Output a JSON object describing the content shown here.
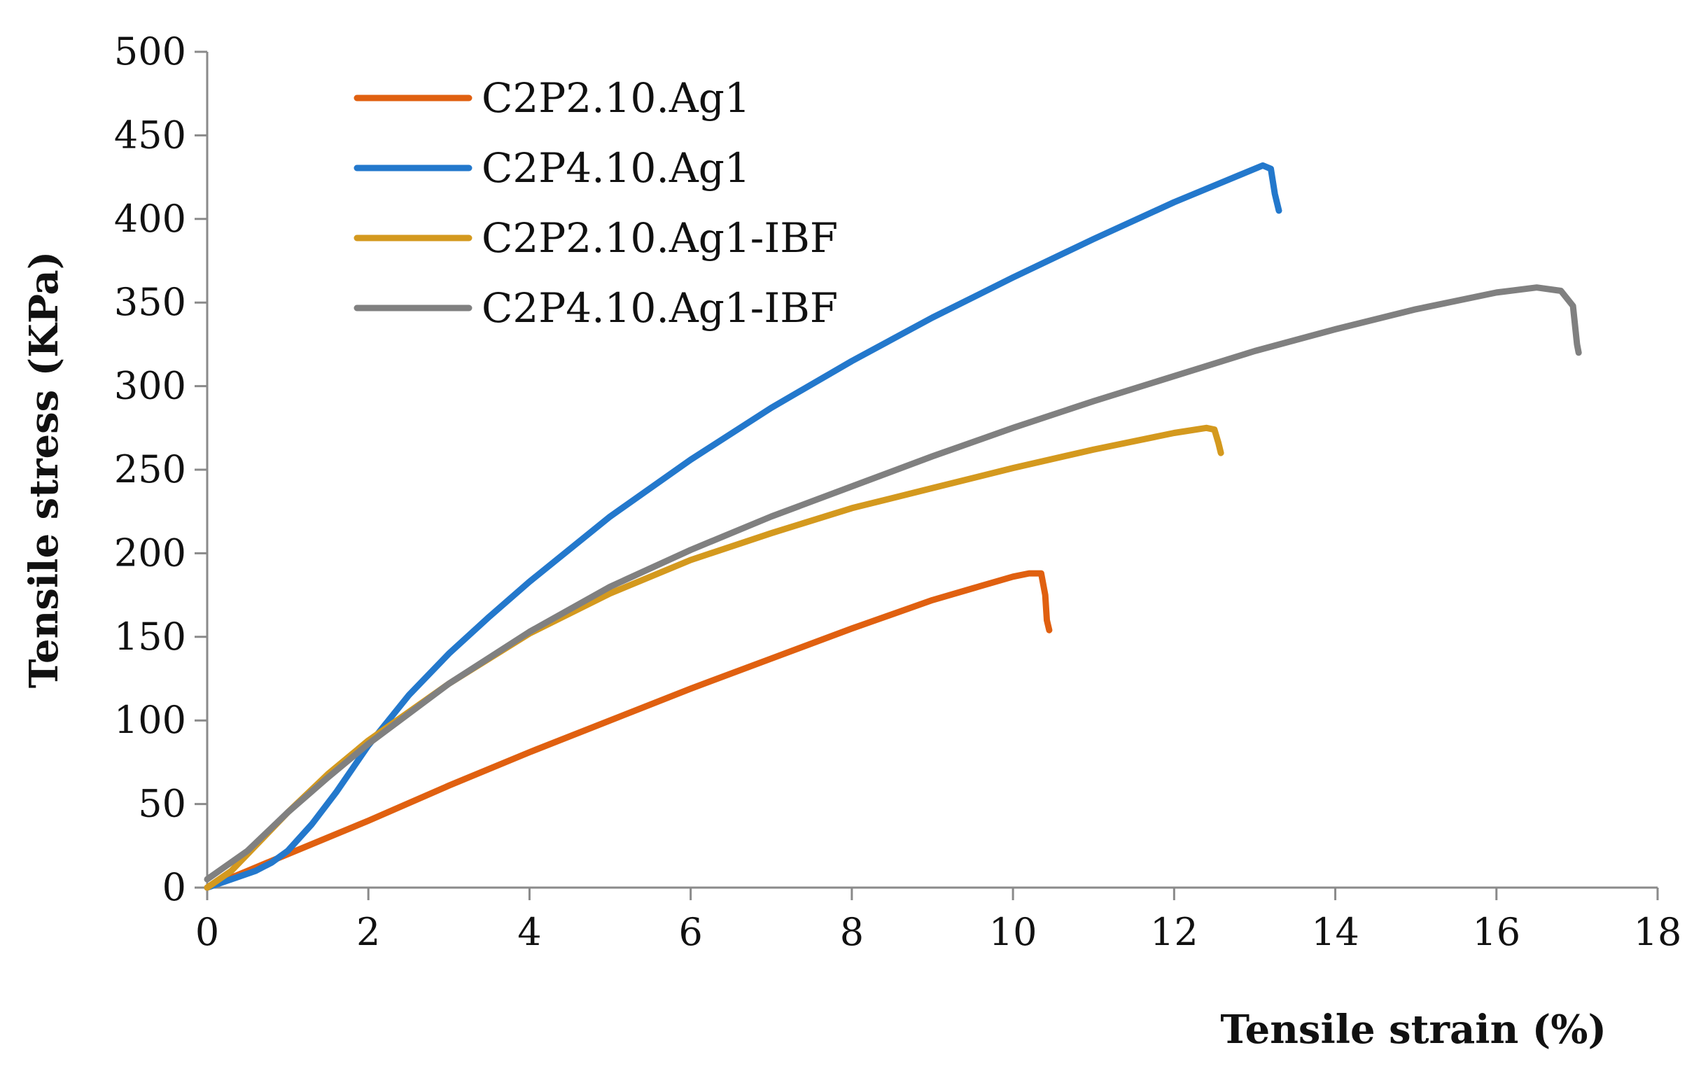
{
  "chart_data": {
    "type": "line",
    "title": "",
    "xlabel": "Tensile strain (%)",
    "ylabel": "Tensile stress (KPa)",
    "xlim": [
      0,
      18
    ],
    "ylim": [
      0,
      500
    ],
    "xticks": [
      0,
      2,
      4,
      6,
      8,
      10,
      12,
      14,
      16,
      18
    ],
    "yticks": [
      0,
      50,
      100,
      150,
      200,
      250,
      300,
      350,
      400,
      450,
      500
    ],
    "grid": false,
    "legend_position": "top-left",
    "series": [
      {
        "name": "C2P2.10.Ag1",
        "color": "#E06010",
        "x": [
          0,
          0.5,
          1,
          2,
          3,
          4,
          5,
          6,
          7,
          8,
          9,
          9.5,
          10,
          10.2,
          10.35,
          10.4,
          10.42,
          10.45
        ],
        "y": [
          0,
          10,
          20,
          40,
          61,
          81,
          100,
          119,
          137,
          155,
          172,
          179,
          186,
          188,
          188,
          175,
          160,
          154
        ]
      },
      {
        "name": "C2P4.10.Ag1",
        "color": "#2378CC",
        "x": [
          0,
          0.3,
          0.6,
          0.8,
          1.0,
          1.3,
          1.6,
          2,
          2.5,
          3,
          3.5,
          4,
          5,
          6,
          7,
          8,
          9,
          10,
          11,
          12,
          12.8,
          13.1,
          13.2,
          13.25,
          13.3
        ],
        "y": [
          0,
          5,
          10,
          15,
          22,
          38,
          57,
          85,
          115,
          140,
          162,
          183,
          222,
          256,
          287,
          315,
          341,
          365,
          388,
          410,
          426,
          432,
          430,
          415,
          405
        ]
      },
      {
        "name": "C2P2.10.Ag1-IBF",
        "color": "#D4991E",
        "x": [
          0,
          0.3,
          0.6,
          1,
          1.5,
          2,
          2.5,
          3,
          4,
          5,
          6,
          7,
          8,
          9,
          10,
          11,
          12,
          12.4,
          12.5,
          12.55,
          12.58
        ],
        "y": [
          0,
          10,
          25,
          45,
          68,
          88,
          105,
          122,
          152,
          176,
          196,
          212,
          227,
          239,
          251,
          262,
          272,
          275,
          274,
          266,
          260
        ]
      },
      {
        "name": "C2P4.10.Ag1-IBF",
        "color": "#808080",
        "x": [
          0,
          0.5,
          1,
          1.5,
          2,
          3,
          4,
          5,
          6,
          7,
          8,
          9,
          10,
          11,
          12,
          13,
          14,
          15,
          16,
          16.5,
          16.8,
          16.95,
          17.0,
          17.02
        ],
        "y": [
          5,
          22,
          45,
          66,
          86,
          122,
          153,
          180,
          202,
          222,
          240,
          258,
          275,
          291,
          306,
          321,
          334,
          346,
          356,
          359,
          357,
          348,
          325,
          320
        ]
      }
    ]
  }
}
